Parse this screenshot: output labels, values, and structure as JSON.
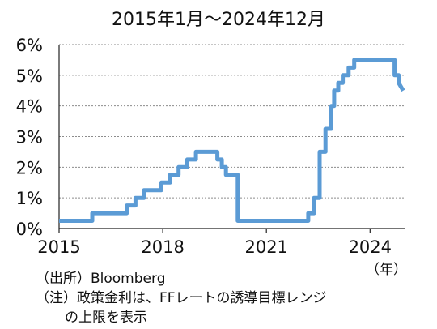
{
  "chart_data": {
    "type": "line",
    "title": "2015年1月～2024年12月",
    "xlabel": "",
    "ylabel": "",
    "x_unit": "（年）",
    "xlim": [
      2015.0,
      2025.0
    ],
    "ylim": [
      0,
      6
    ],
    "x_ticks": [
      2015,
      2018,
      2021,
      2024
    ],
    "x_tick_labels": [
      "2015",
      "2018",
      "2021",
      "2024"
    ],
    "y_ticks": [
      0,
      1,
      2,
      3,
      4,
      5,
      6
    ],
    "y_tick_labels": [
      "0%",
      "1%",
      "2%",
      "3%",
      "4%",
      "5%",
      "6%"
    ],
    "grid": true,
    "line_color": "#5b9bd5",
    "series": [
      {
        "x": [
          2015.0,
          2015.96,
          2015.96,
          2016.96,
          2016.96,
          2017.21,
          2017.21,
          2017.46,
          2017.46,
          2017.96,
          2017.96,
          2018.21,
          2018.21,
          2018.46,
          2018.46,
          2018.71,
          2018.71,
          2018.96,
          2018.96,
          2019.58,
          2019.58,
          2019.71,
          2019.71,
          2019.83,
          2019.83,
          2020.17,
          2020.17,
          2022.21,
          2022.21,
          2022.38,
          2022.38,
          2022.54,
          2022.54,
          2022.71,
          2022.71,
          2022.88,
          2022.88,
          2022.96,
          2022.96,
          2023.08,
          2023.08,
          2023.21,
          2023.21,
          2023.38,
          2023.38,
          2023.54,
          2023.54,
          2024.71,
          2024.71,
          2024.83,
          2024.83,
          2024.96
        ],
        "y": [
          0.25,
          0.25,
          0.5,
          0.5,
          0.75,
          0.75,
          1.0,
          1.0,
          1.25,
          1.25,
          1.5,
          1.5,
          1.75,
          1.75,
          2.0,
          2.0,
          2.25,
          2.25,
          2.5,
          2.5,
          2.25,
          2.25,
          2.0,
          2.0,
          1.75,
          1.75,
          0.25,
          0.25,
          0.5,
          0.5,
          1.0,
          1.0,
          2.5,
          2.5,
          3.25,
          3.25,
          4.0,
          4.0,
          4.5,
          4.5,
          4.75,
          4.75,
          5.0,
          5.0,
          5.25,
          5.25,
          5.5,
          5.5,
          5.0,
          5.0,
          4.75,
          4.5
        ]
      }
    ]
  },
  "notes": {
    "source": "（出所）Bloomberg",
    "note_line1": "（注）政策金利は、FFレートの誘導目標レンジ",
    "note_line2": "の上限を表示"
  }
}
